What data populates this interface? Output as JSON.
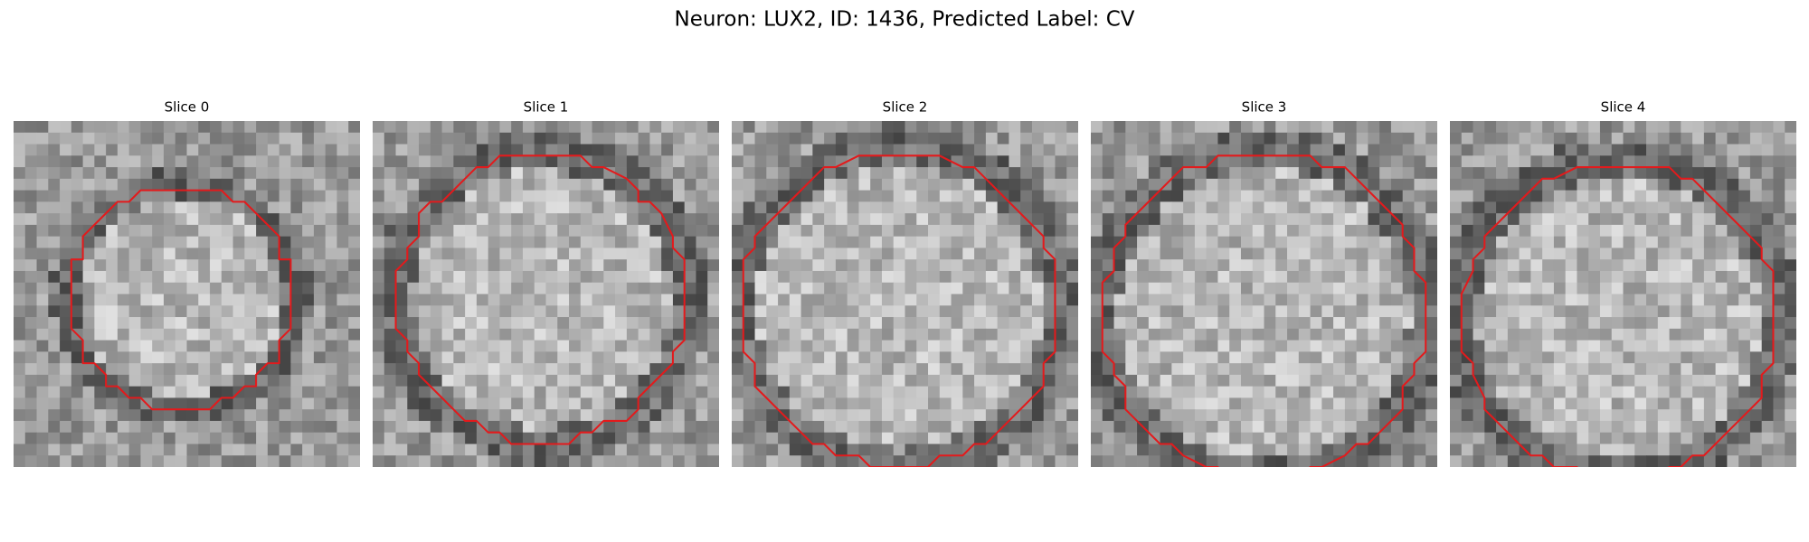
{
  "title": "Neuron: LUX2, ID: 1436, Predicted Label: CV",
  "panels": [
    {
      "title": "Slice 0"
    },
    {
      "title": "Slice 1"
    },
    {
      "title": "Slice 2"
    },
    {
      "title": "Slice 3"
    },
    {
      "title": "Slice 4"
    }
  ]
}
